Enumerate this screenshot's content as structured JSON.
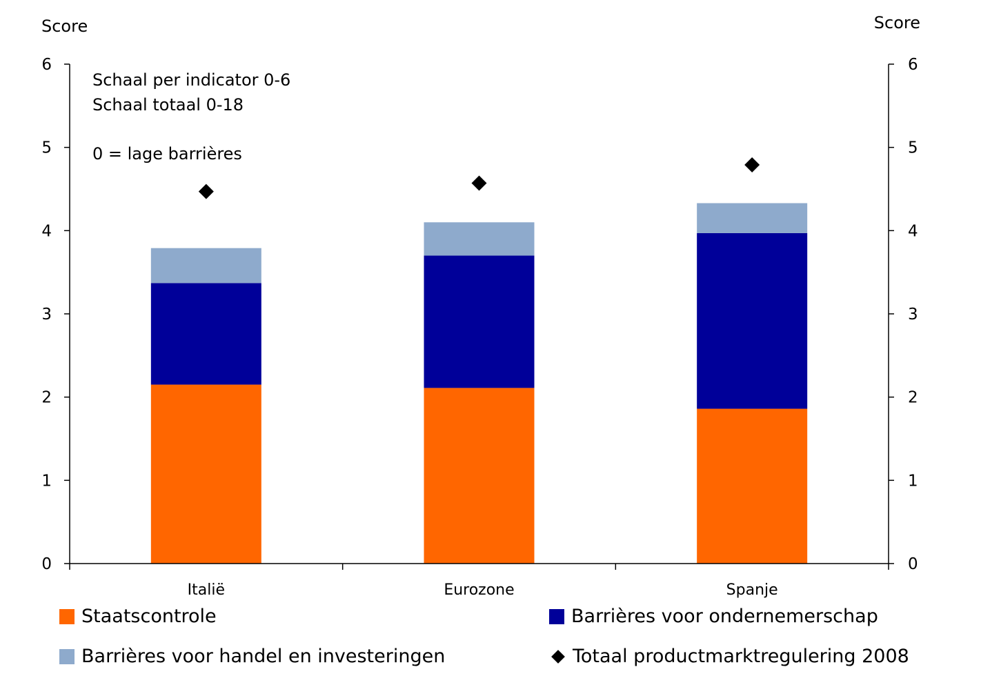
{
  "chart_data": {
    "type": "bar",
    "stacked": true,
    "categories": [
      "Italië",
      "Eurozone",
      "Spanje"
    ],
    "series": [
      {
        "name": "Staatscontrole",
        "color": "#ff6600",
        "values": [
          2.15,
          2.11,
          1.86
        ]
      },
      {
        "name": "Barrières voor ondernemerschap",
        "color": "#000099",
        "values": [
          1.22,
          1.59,
          2.11
        ]
      },
      {
        "name": "Barrières voor handel en investeringen",
        "color": "#8eaacc",
        "values": [
          0.42,
          0.4,
          0.36
        ]
      }
    ],
    "markers": {
      "name": "Totaal productmarktregulering 2008",
      "color": "#000000",
      "shape": "diamond",
      "values": [
        4.47,
        4.57,
        4.79
      ]
    },
    "ylabel_left": "Score",
    "ylabel_right": "Score",
    "ylim": [
      0,
      6
    ],
    "yticks": [
      "0",
      "1",
      "2",
      "3",
      "4",
      "5",
      "6"
    ],
    "annotations": [
      "Schaal per indicator 0-6",
      "Schaal totaal 0-18",
      "0 = lage barrières"
    ],
    "grid": false,
    "legend_position": "bottom"
  }
}
